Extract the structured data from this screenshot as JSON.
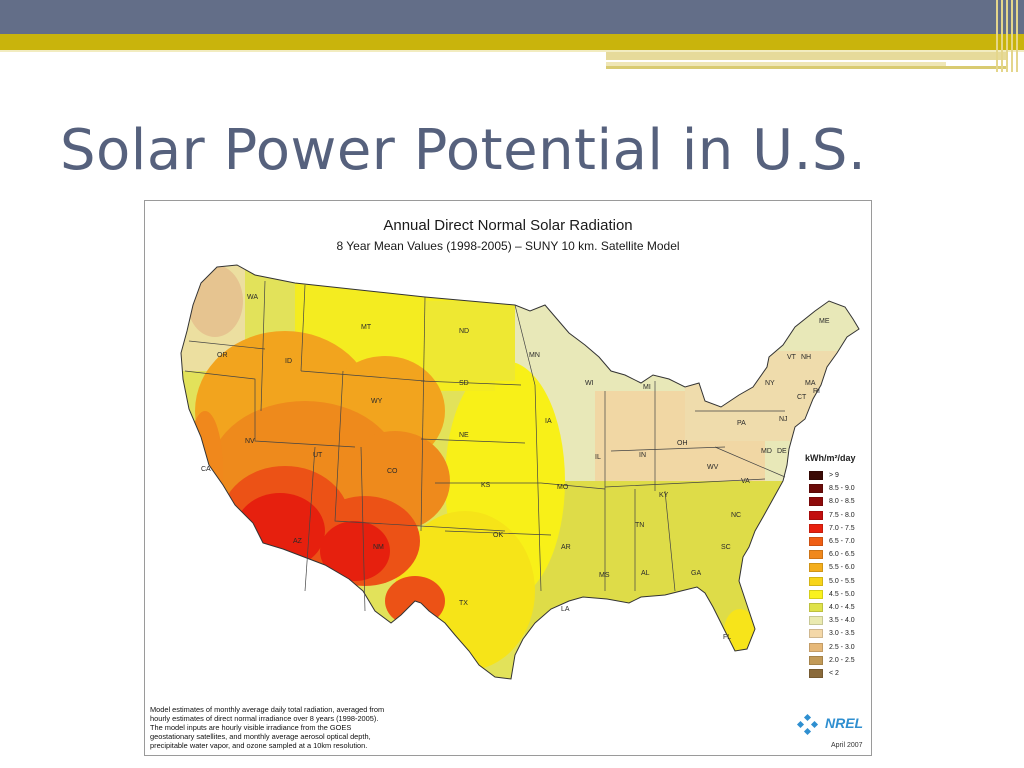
{
  "slide": {
    "title": "Solar Power Potential in U.S."
  },
  "map": {
    "title": "Annual Direct Normal Solar Radiation",
    "subtitle": "8 Year Mean Values (1998-2005) – SUNY 10 km. Satellite Model",
    "state_labels": [
      "WA",
      "OR",
      "CA",
      "NV",
      "ID",
      "MT",
      "WY",
      "UT",
      "AZ",
      "CO",
      "NM",
      "ND",
      "SD",
      "NE",
      "KS",
      "OK",
      "TX",
      "MN",
      "IA",
      "MO",
      "AR",
      "LA",
      "WI",
      "IL",
      "MS",
      "MI",
      "IN",
      "KY",
      "TN",
      "AL",
      "GA",
      "FL",
      "OH",
      "WV",
      "VA",
      "NC",
      "SC",
      "PA",
      "NY",
      "ME",
      "VT",
      "NH",
      "MA",
      "CT",
      "RI",
      "NJ",
      "DE",
      "MD"
    ],
    "legend": {
      "title": "kWh/m²/day",
      "items": [
        {
          "label": "> 9",
          "color": "#3a0a05"
        },
        {
          "label": "8.5 - 9.0",
          "color": "#6a0a08"
        },
        {
          "label": "8.0 - 8.5",
          "color": "#8e0a0a"
        },
        {
          "label": "7.5 - 8.0",
          "color": "#c20e0e"
        },
        {
          "label": "7.0 - 7.5",
          "color": "#e8200e"
        },
        {
          "label": "6.5 - 7.0",
          "color": "#ef5e14"
        },
        {
          "label": "6.0 - 6.5",
          "color": "#f0881c"
        },
        {
          "label": "5.5 - 6.0",
          "color": "#f4ae1c"
        },
        {
          "label": "5.0 - 5.5",
          "color": "#f7d41a"
        },
        {
          "label": "4.5 - 5.0",
          "color": "#faf21e"
        },
        {
          "label": "4.0 - 4.5",
          "color": "#dfe24a"
        },
        {
          "label": "3.5 - 4.0",
          "color": "#eaeab0"
        },
        {
          "label": "3.0 - 3.5",
          "color": "#f4d8a8"
        },
        {
          "label": "2.5 - 3.0",
          "color": "#e6b878"
        },
        {
          "label": "2.0 - 2.5",
          "color": "#c29a58"
        },
        {
          "label": "< 2",
          "color": "#8a6a3a"
        }
      ]
    },
    "footnote": [
      "Model estimates of monthly average daily total radiation, averaged from",
      "hourly estimates of direct normal irradiance over 8 years (1998-2005).",
      "The model inputs are hourly visible irradiance from the GOES",
      " geostationary satellites, and monthly average aerosol optical depth,",
      "precipitable water vapor, and ozone sampled at a 10km resolution."
    ],
    "logo_text": "NREL",
    "date": "April 2007"
  }
}
